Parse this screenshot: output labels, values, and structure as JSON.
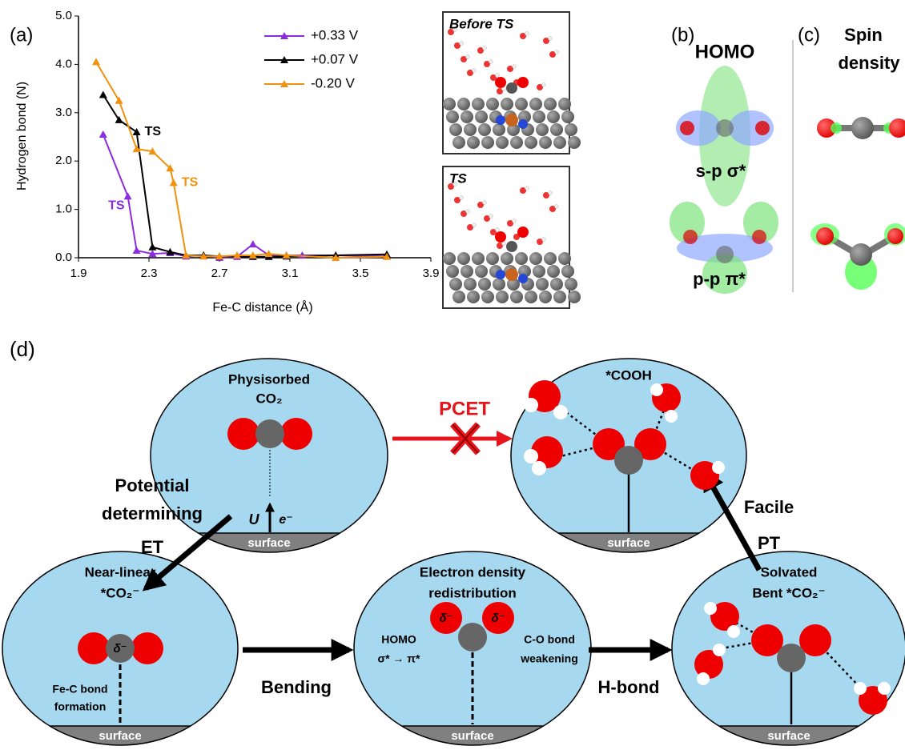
{
  "chart_data": {
    "type": "line",
    "panel_label": "(a)",
    "x_label": "Fe-C distance (Å)",
    "y_label": "Hydrogen bond (N)",
    "xlim": [
      1.9,
      3.9
    ],
    "xticks": [
      1.9,
      2.3,
      2.7,
      3.1,
      3.5,
      3.9
    ],
    "ylim": [
      0,
      5
    ],
    "yticks": [
      {
        "value": 0,
        "label": "0.0"
      },
      {
        "value": 1,
        "label": "1.0"
      },
      {
        "value": 2,
        "label": "2.0"
      },
      {
        "value": 3,
        "label": "3.0"
      },
      {
        "value": 4,
        "label": "4.0"
      },
      {
        "value": 5,
        "label": "5.0"
      }
    ],
    "legend": "upper right",
    "marker": "triangle",
    "series": [
      {
        "name": "+0.33 V",
        "color": "#8b2be2",
        "x": [
          2.04,
          2.18,
          2.23,
          2.32,
          2.42,
          2.51,
          2.61,
          2.7,
          2.8,
          2.89,
          2.98,
          3.08,
          3.17,
          3.36,
          3.65
        ],
        "values": [
          2.55,
          1.27,
          0.15,
          0.08,
          0.1,
          0.03,
          0.05,
          0.0,
          0.02,
          0.28,
          0.05,
          0.05,
          0.05,
          0.05,
          0.03
        ]
      },
      {
        "name": "+0.07 V",
        "color": "#000000",
        "x": [
          2.04,
          2.13,
          2.23,
          2.32,
          2.42,
          2.51,
          2.61,
          2.7,
          2.89,
          2.98,
          3.08,
          3.36,
          3.65
        ],
        "values": [
          3.37,
          2.85,
          2.6,
          0.22,
          0.12,
          0.05,
          0.05,
          0.03,
          0.02,
          0.02,
          0.03,
          0.05,
          0.07
        ]
      },
      {
        "name": "-0.20 V",
        "color": "#f0920e",
        "x": [
          2.0,
          2.13,
          2.23,
          2.32,
          2.42,
          2.44,
          2.51,
          2.61,
          2.7,
          2.8,
          2.89,
          2.98,
          3.08,
          3.36,
          3.65
        ],
        "values": [
          4.05,
          3.25,
          2.25,
          2.2,
          1.85,
          1.55,
          0.05,
          0.03,
          0.03,
          0.05,
          0.05,
          0.08,
          0.05,
          0.0,
          0.02
        ]
      }
    ],
    "annotations": [
      {
        "text": "TS",
        "x": 2.18,
        "y": 1.27,
        "color": "#8b2be2"
      },
      {
        "text": "TS",
        "x": 2.23,
        "y": 2.6,
        "color": "#000000"
      },
      {
        "text": "TS",
        "x": 2.44,
        "y": 1.55,
        "color": "#f0920e"
      }
    ]
  },
  "md": {
    "before": "Before TS",
    "ts": "TS"
  },
  "panel_b": {
    "label": "(b)",
    "title": "HOMO",
    "sigma": "s-p σ*",
    "pi": "p-p π*"
  },
  "panel_c": {
    "label": "(c)",
    "title_line1": "Spin",
    "title_line2": "density"
  },
  "panel_d": {
    "label": "(d)",
    "physisorbed": {
      "line1": "Physisorbed",
      "line2": "CO₂",
      "u": "U",
      "e": "e⁻",
      "surface": "surface"
    },
    "cooh": {
      "title": "*COOH",
      "surface": "surface"
    },
    "pcet": "PCET",
    "et": {
      "line1": "Potential",
      "line2": "determining",
      "line3": "ET"
    },
    "pt": {
      "line1": "Facile",
      "line2": "PT"
    },
    "near_linear": {
      "line1": "Near-linear",
      "line2": "*CO₂⁻",
      "delta": "δ⁻",
      "note1": "Fe-C bond",
      "note2": "formation",
      "surface": "surface"
    },
    "bending": "Bending",
    "redistribution": {
      "line1": "Electron density",
      "line2": "redistribution",
      "homo1": "HOMO",
      "homo2": "σ* → π*",
      "delta1": "δ⁻",
      "delta2": "δ⁻",
      "note1": "C-O bond",
      "note2": "weakening",
      "surface": "surface"
    },
    "hbond": "H-bond",
    "solvated": {
      "line1": "Solvated",
      "line2": "Bent *CO₂⁻",
      "surface": "surface"
    }
  }
}
